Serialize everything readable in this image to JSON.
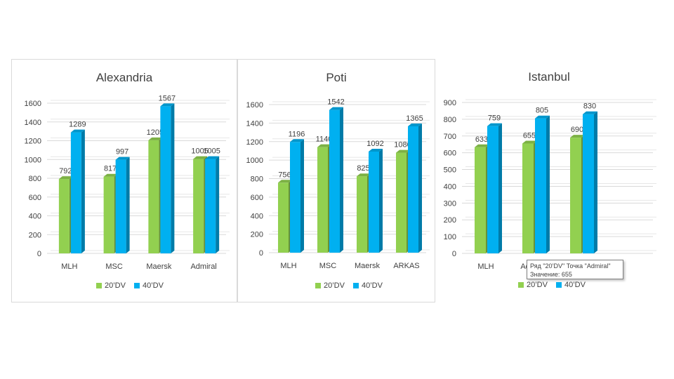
{
  "colors": {
    "green": "#92d050",
    "blue": "#00b0f0"
  },
  "legend": [
    "20’DV",
    "40’DV"
  ],
  "tooltip": {
    "line1": "Ряд \"20’DV\" Точка \"Admiral\"",
    "line2": "Значение: 655"
  },
  "chart_data": [
    {
      "type": "bar",
      "title": "Alexandria",
      "categories": [
        "MLH",
        "MSC",
        "Maersk",
        "Admiral"
      ],
      "series": [
        {
          "name": "20’DV",
          "values": [
            792,
            817,
            1205,
            1005
          ]
        },
        {
          "name": "40’DV",
          "values": [
            1289,
            997,
            1567,
            1005
          ]
        }
      ],
      "ylim": [
        0,
        1600
      ],
      "yticks": [
        "0",
        "200",
        "400",
        "600",
        "800",
        "1000",
        "1200",
        "1400",
        "1600"
      ],
      "grid": true,
      "legend_position": "bottom"
    },
    {
      "type": "bar",
      "title": "Poti",
      "categories": [
        "MLH",
        "MSC",
        "Maersk",
        "ARKAS"
      ],
      "series": [
        {
          "name": "20’DV",
          "values": [
            756,
            1140,
            825,
            1080
          ]
        },
        {
          "name": "40’DV",
          "values": [
            1196,
            1542,
            1092,
            1365
          ]
        }
      ],
      "ylim": [
        0,
        1600
      ],
      "yticks": [
        "0",
        "200",
        "400",
        "600",
        "800",
        "1000",
        "1200",
        "1400",
        "1600"
      ],
      "grid": true,
      "legend_position": "bottom"
    },
    {
      "type": "bar",
      "title": "Istanbul",
      "categories": [
        "MLH",
        "Admiral",
        ""
      ],
      "series": [
        {
          "name": "20’DV",
          "values": [
            633,
            655,
            690
          ]
        },
        {
          "name": "40’DV",
          "values": [
            759,
            805,
            830
          ]
        }
      ],
      "ylim": [
        0,
        900
      ],
      "yticks": [
        "0",
        "100",
        "200",
        "300",
        "400",
        "500",
        "600",
        "700",
        "800",
        "900"
      ],
      "grid": true,
      "legend_position": "bottom"
    }
  ]
}
